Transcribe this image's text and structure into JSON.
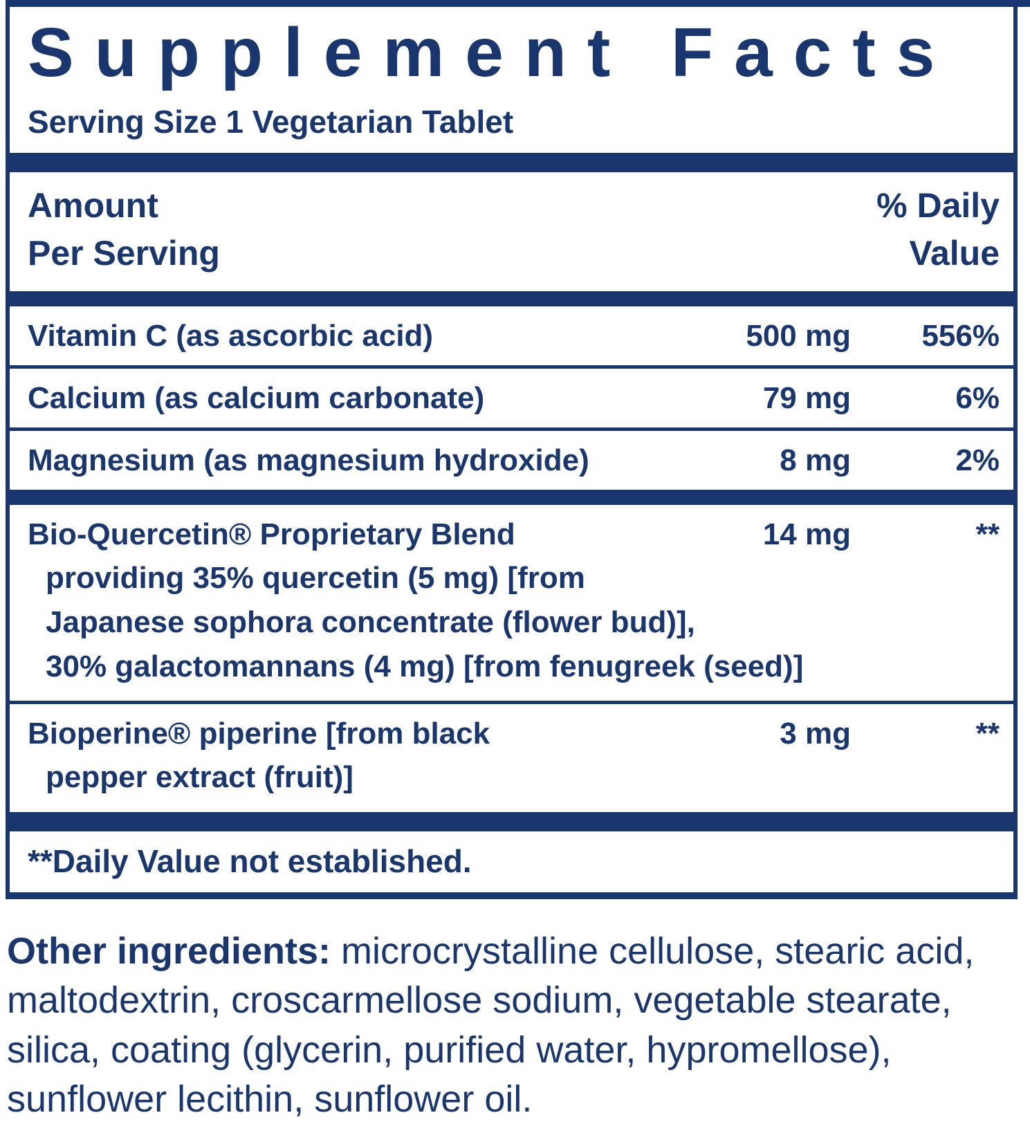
{
  "colors": {
    "navy": "#1a366e",
    "background": "#ffffff"
  },
  "label": {
    "title": "Supplement Facts",
    "serving_size": "Serving Size 1 Vegetarian Tablet",
    "columns": {
      "amount": "Amount\nPer Serving",
      "daily_value": "% Daily\nValue"
    },
    "rows": [
      {
        "name": "Vitamin C (as ascorbic acid)",
        "amount": "500 mg",
        "dv": "556%"
      },
      {
        "name": "Calcium (as calcium carbonate)",
        "amount": "79 mg",
        "dv": "6%"
      },
      {
        "name": "Magnesium (as magnesium hydroxide)",
        "amount": "8 mg",
        "dv": "2%"
      },
      {
        "name": "Bio-Quercetin® Proprietary Blend",
        "detail": "providing 35% quercetin (5 mg) [from\nJapanese sophora concentrate (flower bud)],\n30% galactomannans (4 mg) [from fenugreek (seed)]",
        "amount": "14 mg",
        "dv": "**"
      },
      {
        "name": "Bioperine® piperine [from black",
        "detail": "pepper extract (fruit)]",
        "amount": "3 mg",
        "dv": "**"
      }
    ],
    "footnote": "**Daily Value not established."
  },
  "other_ingredients": {
    "label": "Other ingredients:",
    "text": " microcrystalline cellulose, stearic acid, maltodextrin, croscarmellose sodium, vegetable stearate, silica, coating (glycerin, purified water, hypromellose), sunflower lecithin, sunflower oil."
  }
}
